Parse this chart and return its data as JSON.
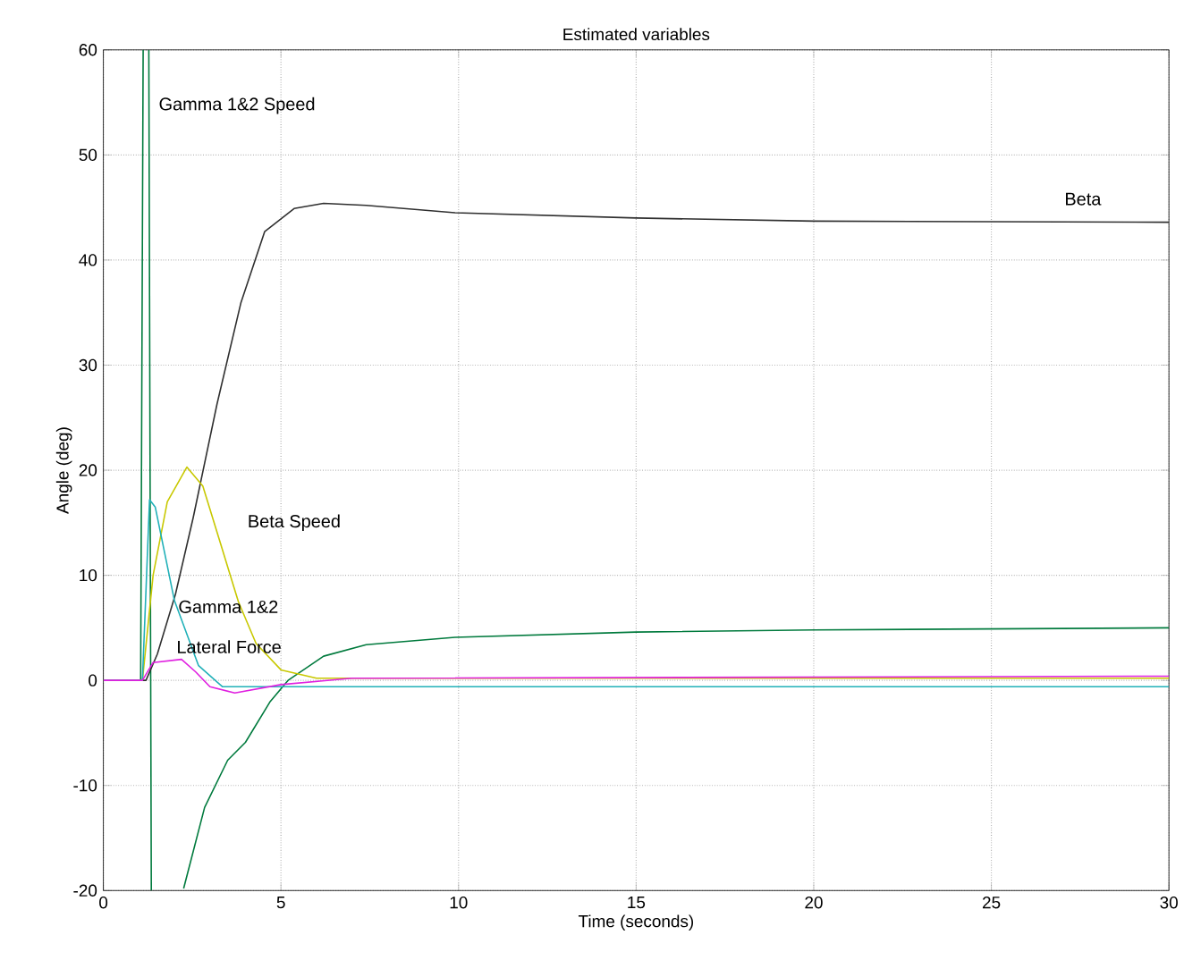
{
  "chart_data": {
    "type": "line",
    "title": "Estimated variables",
    "xlabel": "Time (seconds)",
    "ylabel": "Angle (deg)",
    "xlim": [
      0,
      30
    ],
    "ylim": [
      -20,
      60
    ],
    "xticks": [
      0,
      5,
      10,
      15,
      20,
      25,
      30
    ],
    "yticks": [
      -20,
      -10,
      0,
      10,
      20,
      30,
      40,
      50,
      60
    ],
    "grid": true,
    "series": [
      {
        "name": "Gamma 1&2 Speed",
        "color": "#007a3d",
        "x": [
          0,
          1.05,
          1.12,
          1.2,
          1.28,
          1.35,
          1.8,
          2.26,
          2.85,
          3.5,
          4.0,
          4.7,
          5.2,
          6.2,
          7.4,
          9.9,
          15,
          20,
          30
        ],
        "values": [
          0,
          0,
          60,
          null,
          60,
          -20,
          null,
          -19.8,
          -12.1,
          -7.6,
          -5.9,
          -2,
          0,
          2.3,
          3.4,
          4.1,
          4.6,
          4.8,
          5.0
        ]
      },
      {
        "name": "Beta",
        "color": "#303030",
        "x": [
          0,
          1.2,
          1.52,
          2.03,
          2.53,
          3.2,
          3.87,
          4.54,
          5.37,
          6.2,
          7.4,
          9.9,
          15,
          20,
          30
        ],
        "values": [
          0,
          0,
          2.5,
          8.2,
          15.5,
          26.3,
          35.9,
          42.7,
          44.9,
          45.4,
          45.2,
          44.5,
          44.0,
          43.7,
          43.6
        ]
      },
      {
        "name": "Beta Speed",
        "color": "#c8c800",
        "x": [
          0,
          1.1,
          1.4,
          1.8,
          2.35,
          2.8,
          3.3,
          3.8,
          4.3,
          5.0,
          6,
          30
        ],
        "values": [
          0,
          0,
          10,
          17,
          20.3,
          18.5,
          13,
          7.5,
          3.5,
          1,
          0.2,
          0.2
        ]
      },
      {
        "name": "Gamma 1&2",
        "color": "#20b0b8",
        "x": [
          0,
          1.1,
          1.3,
          1.46,
          2.0,
          2.68,
          3.35,
          5,
          30
        ],
        "values": [
          0,
          0,
          17.2,
          16.5,
          7.6,
          1.4,
          -0.6,
          -0.6,
          -0.6
        ]
      },
      {
        "name": "Lateral Force",
        "color": "#e020e0",
        "x": [
          0,
          1.1,
          1.4,
          2.2,
          2.6,
          3.0,
          3.7,
          5,
          7,
          30
        ],
        "values": [
          0,
          0,
          1.7,
          2.0,
          0.8,
          -0.6,
          -1.2,
          -0.4,
          0.2,
          0.4
        ]
      }
    ]
  }
}
